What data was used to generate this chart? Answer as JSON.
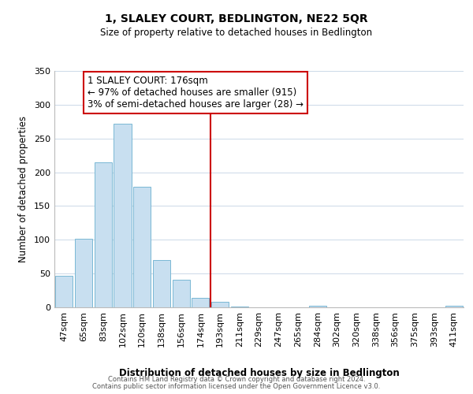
{
  "title": "1, SLALEY COURT, BEDLINGTON, NE22 5QR",
  "subtitle": "Size of property relative to detached houses in Bedlington",
  "xlabel": "Distribution of detached houses by size in Bedlington",
  "ylabel": "Number of detached properties",
  "bar_labels": [
    "47sqm",
    "65sqm",
    "83sqm",
    "102sqm",
    "120sqm",
    "138sqm",
    "156sqm",
    "174sqm",
    "193sqm",
    "211sqm",
    "229sqm",
    "247sqm",
    "265sqm",
    "284sqm",
    "302sqm",
    "320sqm",
    "338sqm",
    "356sqm",
    "375sqm",
    "393sqm",
    "411sqm"
  ],
  "bar_values": [
    47,
    101,
    215,
    272,
    179,
    70,
    41,
    14,
    8,
    1,
    0,
    0,
    0,
    2,
    0,
    0,
    0,
    0,
    0,
    0,
    2
  ],
  "bar_color": "#c8dff0",
  "bar_edge_color": "#7ab8d4",
  "highlight_line_index": 7,
  "highlight_line_color": "#cc0000",
  "annotation_title": "1 SLALEY COURT: 176sqm",
  "annotation_line1": "← 97% of detached houses are smaller (915)",
  "annotation_line2": "3% of semi-detached houses are larger (28) →",
  "annotation_box_color": "#ffffff",
  "annotation_box_edge": "#cc0000",
  "ylim": [
    0,
    350
  ],
  "yticks": [
    0,
    50,
    100,
    150,
    200,
    250,
    300,
    350
  ],
  "footer1": "Contains HM Land Registry data © Crown copyright and database right 2024.",
  "footer2": "Contains public sector information licensed under the Open Government Licence v3.0.",
  "background_color": "#ffffff",
  "grid_color": "#ccd9e8",
  "title_fontsize": 10,
  "subtitle_fontsize": 8.5,
  "ylabel_fontsize": 8.5,
  "xlabel_fontsize": 8.5,
  "tick_fontsize": 8,
  "footer_fontsize": 6,
  "annotation_fontsize": 8.5
}
